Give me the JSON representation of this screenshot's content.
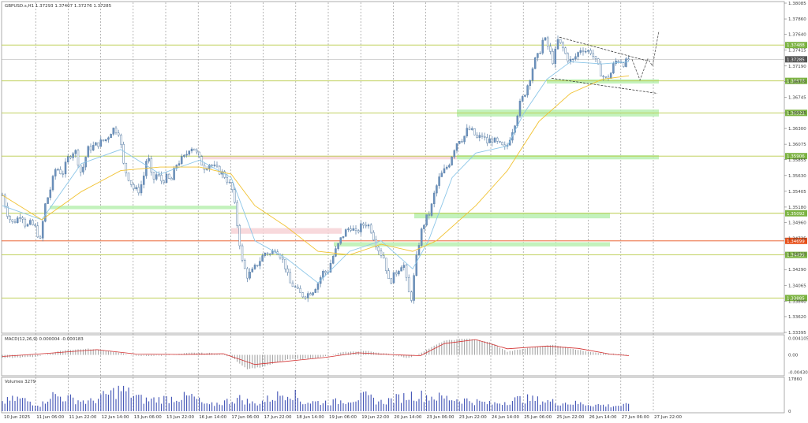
{
  "chart_data": {
    "type": "candlestick",
    "symbol_header": "GBPUSD.s,H1  1.37293 1.37407 1.37276 1.37285",
    "price_axis": {
      "ylim": [
        1.33395,
        1.38085
      ],
      "ticks": [
        "1.38085",
        "1.37860",
        "1.37640",
        "1.37415",
        "1.37190",
        "1.36970",
        "1.36745",
        "1.36525",
        "1.36300",
        "1.36075",
        "1.35855",
        "1.35630",
        "1.35405",
        "1.35180",
        "1.34960",
        "1.34735",
        "1.34510",
        "1.34290",
        "1.34065",
        "1.33840",
        "1.33620",
        "1.33395"
      ],
      "current_price": 1.37285,
      "current_label": "1.37285"
    },
    "levels": [
      {
        "value": 1.37488,
        "label": "1.37488"
      },
      {
        "value": 1.36978,
        "label": "1.36978"
      },
      {
        "value": 1.36522,
        "label": "1.36522"
      },
      {
        "value": 1.35906,
        "label": "1.35906"
      },
      {
        "value": 1.35092,
        "label": "1.35092"
      },
      {
        "value": 1.34699,
        "label": "1.34699",
        "color": "#e8501a"
      },
      {
        "value": 1.34499,
        "label": "1.34499"
      },
      {
        "value": 1.33885,
        "label": "1.33885"
      }
    ],
    "time_labels": [
      "10 Jun 2025",
      "11 Jun 06:00",
      "11 Jun 22:00",
      "12 Jun 14:00",
      "13 Jun 06:00",
      "13 Jun 22:00",
      "16 Jun 14:00",
      "17 Jun 06:00",
      "17 Jun 22:00",
      "18 Jun 14:00",
      "19 Jun 06:00",
      "19 Jun 22:00",
      "20 Jun 14:00",
      "23 Jun 06:00",
      "23 Jun 22:00",
      "24 Jun 14:00",
      "25 Jun 06:00",
      "25 Jun 22:00",
      "26 Jun 14:00",
      "27 Jun 06:00",
      "27 Jun 22:00"
    ],
    "price_keypoints": [
      {
        "x": 0,
        "close": 1.3535
      },
      {
        "x": 6,
        "close": 1.351
      },
      {
        "x": 12,
        "close": 1.3495
      },
      {
        "x": 18,
        "close": 1.35
      },
      {
        "x": 24,
        "close": 1.351
      },
      {
        "x": 30,
        "close": 1.349
      },
      {
        "x": 36,
        "close": 1.3495
      },
      {
        "x": 42,
        "close": 1.3488
      },
      {
        "x": 48,
        "close": 1.347
      },
      {
        "x": 54,
        "close": 1.352
      },
      {
        "x": 60,
        "close": 1.354
      },
      {
        "x": 68,
        "close": 1.3575
      },
      {
        "x": 76,
        "close": 1.3565
      },
      {
        "x": 84,
        "close": 1.359
      },
      {
        "x": 92,
        "close": 1.36
      },
      {
        "x": 100,
        "close": 1.3565
      },
      {
        "x": 108,
        "close": 1.36
      },
      {
        "x": 116,
        "close": 1.3605
      },
      {
        "x": 124,
        "close": 1.361
      },
      {
        "x": 132,
        "close": 1.3615
      },
      {
        "x": 140,
        "close": 1.363
      },
      {
        "x": 148,
        "close": 1.3625
      },
      {
        "x": 154,
        "close": 1.3575
      },
      {
        "x": 160,
        "close": 1.356
      },
      {
        "x": 166,
        "close": 1.3545
      },
      {
        "x": 172,
        "close": 1.354
      },
      {
        "x": 178,
        "close": 1.3555
      },
      {
        "x": 184,
        "close": 1.3595
      },
      {
        "x": 190,
        "close": 1.3555
      },
      {
        "x": 196,
        "close": 1.3565
      },
      {
        "x": 202,
        "close": 1.3555
      },
      {
        "x": 208,
        "close": 1.356
      },
      {
        "x": 214,
        "close": 1.3555
      },
      {
        "x": 220,
        "close": 1.3578
      },
      {
        "x": 226,
        "close": 1.3585
      },
      {
        "x": 232,
        "close": 1.359
      },
      {
        "x": 238,
        "close": 1.3605
      },
      {
        "x": 244,
        "close": 1.36
      },
      {
        "x": 250,
        "close": 1.3585
      },
      {
        "x": 256,
        "close": 1.3575
      },
      {
        "x": 262,
        "close": 1.358
      },
      {
        "x": 268,
        "close": 1.3575
      },
      {
        "x": 274,
        "close": 1.357
      },
      {
        "x": 280,
        "close": 1.3565
      },
      {
        "x": 286,
        "close": 1.3555
      },
      {
        "x": 292,
        "close": 1.354
      },
      {
        "x": 298,
        "close": 1.349
      },
      {
        "x": 304,
        "close": 1.344
      },
      {
        "x": 310,
        "close": 1.342
      },
      {
        "x": 316,
        "close": 1.3425
      },
      {
        "x": 322,
        "close": 1.3435
      },
      {
        "x": 328,
        "close": 1.3445
      },
      {
        "x": 334,
        "close": 1.3455
      },
      {
        "x": 340,
        "close": 1.345
      },
      {
        "x": 346,
        "close": 1.346
      },
      {
        "x": 352,
        "close": 1.345
      },
      {
        "x": 358,
        "close": 1.3435
      },
      {
        "x": 364,
        "close": 1.341
      },
      {
        "x": 370,
        "close": 1.3405
      },
      {
        "x": 376,
        "close": 1.3395
      },
      {
        "x": 382,
        "close": 1.3392
      },
      {
        "x": 388,
        "close": 1.3395
      },
      {
        "x": 394,
        "close": 1.34
      },
      {
        "x": 400,
        "close": 1.341
      },
      {
        "x": 406,
        "close": 1.3425
      },
      {
        "x": 412,
        "close": 1.3425
      },
      {
        "x": 418,
        "close": 1.3445
      },
      {
        "x": 424,
        "close": 1.346
      },
      {
        "x": 430,
        "close": 1.3475
      },
      {
        "x": 436,
        "close": 1.3485
      },
      {
        "x": 442,
        "close": 1.349
      },
      {
        "x": 448,
        "close": 1.348
      },
      {
        "x": 454,
        "close": 1.349
      },
      {
        "x": 460,
        "close": 1.3495
      },
      {
        "x": 466,
        "close": 1.349
      },
      {
        "x": 472,
        "close": 1.347
      },
      {
        "x": 478,
        "close": 1.3455
      },
      {
        "x": 484,
        "close": 1.3445
      },
      {
        "x": 490,
        "close": 1.341
      },
      {
        "x": 496,
        "close": 1.342
      },
      {
        "x": 502,
        "close": 1.343
      },
      {
        "x": 508,
        "close": 1.344
      },
      {
        "x": 514,
        "close": 1.34
      },
      {
        "x": 518,
        "close": 1.3385
      },
      {
        "x": 524,
        "close": 1.344
      },
      {
        "x": 530,
        "close": 1.348
      },
      {
        "x": 536,
        "close": 1.35
      },
      {
        "x": 542,
        "close": 1.351
      },
      {
        "x": 548,
        "close": 1.354
      },
      {
        "x": 554,
        "close": 1.356
      },
      {
        "x": 560,
        "close": 1.357
      },
      {
        "x": 566,
        "close": 1.358
      },
      {
        "x": 572,
        "close": 1.36
      },
      {
        "x": 578,
        "close": 1.3615
      },
      {
        "x": 584,
        "close": 1.3615
      },
      {
        "x": 590,
        "close": 1.363
      },
      {
        "x": 596,
        "close": 1.3625
      },
      {
        "x": 602,
        "close": 1.3615
      },
      {
        "x": 608,
        "close": 1.362
      },
      {
        "x": 614,
        "close": 1.361
      },
      {
        "x": 620,
        "close": 1.3615
      },
      {
        "x": 626,
        "close": 1.361
      },
      {
        "x": 632,
        "close": 1.3605
      },
      {
        "x": 638,
        "close": 1.36
      },
      {
        "x": 644,
        "close": 1.362
      },
      {
        "x": 650,
        "close": 1.364
      },
      {
        "x": 656,
        "close": 1.3665
      },
      {
        "x": 662,
        "close": 1.368
      },
      {
        "x": 668,
        "close": 1.37
      },
      {
        "x": 674,
        "close": 1.3725
      },
      {
        "x": 680,
        "close": 1.3735
      },
      {
        "x": 686,
        "close": 1.376
      },
      {
        "x": 692,
        "close": 1.3745
      },
      {
        "x": 698,
        "close": 1.3725
      },
      {
        "x": 704,
        "close": 1.3755
      },
      {
        "x": 710,
        "close": 1.3745
      },
      {
        "x": 716,
        "close": 1.373
      },
      {
        "x": 722,
        "close": 1.3725
      },
      {
        "x": 728,
        "close": 1.3735
      },
      {
        "x": 734,
        "close": 1.3745
      },
      {
        "x": 740,
        "close": 1.374
      },
      {
        "x": 746,
        "close": 1.374
      },
      {
        "x": 752,
        "close": 1.3725
      },
      {
        "x": 758,
        "close": 1.371
      },
      {
        "x": 764,
        "close": 1.37
      },
      {
        "x": 770,
        "close": 1.3705
      },
      {
        "x": 776,
        "close": 1.3725
      },
      {
        "x": 782,
        "close": 1.3728
      },
      {
        "x": 788,
        "close": 1.3722
      },
      {
        "x": 794,
        "close": 1.37285
      }
    ],
    "ma_fast": [
      [
        0,
        1.352
      ],
      [
        50,
        1.35
      ],
      [
        100,
        1.358
      ],
      [
        150,
        1.36
      ],
      [
        200,
        1.3565
      ],
      [
        250,
        1.3585
      ],
      [
        290,
        1.356
      ],
      [
        320,
        1.347
      ],
      [
        360,
        1.3445
      ],
      [
        400,
        1.341
      ],
      [
        440,
        1.3455
      ],
      [
        480,
        1.347
      ],
      [
        520,
        1.343
      ],
      [
        540,
        1.347
      ],
      [
        570,
        1.356
      ],
      [
        600,
        1.3595
      ],
      [
        640,
        1.3605
      ],
      [
        660,
        1.365
      ],
      [
        690,
        1.37
      ],
      [
        720,
        1.3725
      ],
      [
        760,
        1.3722
      ],
      [
        794,
        1.3725
      ]
    ],
    "ma_slow": [
      [
        0,
        1.3535
      ],
      [
        50,
        1.35
      ],
      [
        100,
        1.354
      ],
      [
        150,
        1.357
      ],
      [
        200,
        1.3575
      ],
      [
        250,
        1.3575
      ],
      [
        290,
        1.3565
      ],
      [
        320,
        1.352
      ],
      [
        360,
        1.349
      ],
      [
        400,
        1.3455
      ],
      [
        440,
        1.345
      ],
      [
        480,
        1.3465
      ],
      [
        520,
        1.3455
      ],
      [
        550,
        1.347
      ],
      [
        600,
        1.352
      ],
      [
        640,
        1.357
      ],
      [
        680,
        1.364
      ],
      [
        720,
        1.368
      ],
      [
        760,
        1.37
      ],
      [
        794,
        1.3705
      ]
    ],
    "channel": {
      "upper": [
        [
          706,
          1.376
        ],
        [
          818,
          1.3726
        ]
      ],
      "lower": [
        [
          696,
          1.37015
        ],
        [
          830,
          1.368
        ]
      ]
    },
    "projection": [
      [
        798,
        1.37285
      ],
      [
        808,
        1.3699
      ],
      [
        818,
        1.3729
      ],
      [
        824,
        1.3719
      ],
      [
        832,
        1.3769
      ]
    ],
    "zones": [
      {
        "x0": 576,
        "x1": 832,
        "y0": 1.3657,
        "y1": 1.3647,
        "color": "green"
      },
      {
        "x0": 576,
        "x1": 832,
        "y0": 1.3592,
        "y1": 1.3586,
        "color": "green"
      },
      {
        "x0": 690,
        "x1": 832,
        "y0": 1.37,
        "y1": 1.3694,
        "color": "green"
      },
      {
        "x0": 60,
        "x1": 298,
        "y0": 1.352,
        "y1": 1.3515,
        "color": "green"
      },
      {
        "x0": 522,
        "x1": 770,
        "y0": 1.351,
        "y1": 1.3502,
        "color": "green"
      },
      {
        "x0": 420,
        "x1": 770,
        "y0": 1.3468,
        "y1": 1.3462,
        "color": "green"
      },
      {
        "x0": 252,
        "x1": 576,
        "y0": 1.3591,
        "y1": 1.3586,
        "color": "pink"
      },
      {
        "x0": 290,
        "x1": 430,
        "y0": 1.3488,
        "y1": 1.348,
        "color": "pink"
      }
    ],
    "macd": {
      "label": "MACD(12,26,9) 0.000004 -0.000183",
      "ticks": [
        "0.004105",
        "0.00",
        "-0.004305"
      ],
      "ylim": [
        -0.0048,
        0.0046
      ],
      "histogram_keypoints": [
        [
          0,
          -0.0008
        ],
        [
          40,
          -0.0005
        ],
        [
          80,
          0.0012
        ],
        [
          110,
          0.0015
        ],
        [
          140,
          0.0008
        ],
        [
          170,
          -0.0003
        ],
        [
          200,
          -0.0002
        ],
        [
          240,
          0.0005
        ],
        [
          270,
          0.0004
        ],
        [
          290,
          -0.0005
        ],
        [
          310,
          -0.0035
        ],
        [
          330,
          -0.003
        ],
        [
          360,
          -0.0012
        ],
        [
          400,
          -0.0008
        ],
        [
          430,
          0.0006
        ],
        [
          460,
          0.001
        ],
        [
          490,
          0.0002
        ],
        [
          515,
          -0.0008
        ],
        [
          530,
          0.0005
        ],
        [
          560,
          0.0035
        ],
        [
          590,
          0.0041
        ],
        [
          620,
          0.003
        ],
        [
          640,
          0.0008
        ],
        [
          670,
          0.0018
        ],
        [
          700,
          0.0025
        ],
        [
          730,
          0.0012
        ],
        [
          760,
          0.0004
        ],
        [
          794,
          0.0
        ]
      ],
      "signal_keypoints": [
        [
          0,
          -0.0004
        ],
        [
          60,
          0.0004
        ],
        [
          120,
          0.0013
        ],
        [
          170,
          0.0002
        ],
        [
          230,
          0.0001
        ],
        [
          280,
          0.0003
        ],
        [
          320,
          -0.0024
        ],
        [
          360,
          -0.0016
        ],
        [
          410,
          -0.0006
        ],
        [
          450,
          0.0005
        ],
        [
          500,
          0.0
        ],
        [
          530,
          -0.0002
        ],
        [
          560,
          0.0028
        ],
        [
          600,
          0.0038
        ],
        [
          640,
          0.0015
        ],
        [
          690,
          0.0022
        ],
        [
          730,
          0.0016
        ],
        [
          770,
          0.0002
        ],
        [
          794,
          -0.0002
        ]
      ]
    },
    "volumes": {
      "label": "Volumes 3279",
      "ticks": [
        "17860",
        "0"
      ],
      "ylim": [
        0,
        17860
      ],
      "keypoints": [
        [
          0,
          5000
        ],
        [
          20,
          7000
        ],
        [
          50,
          3500
        ],
        [
          60,
          9000
        ],
        [
          110,
          5000
        ],
        [
          150,
          12000
        ],
        [
          180,
          6000
        ],
        [
          240,
          8000
        ],
        [
          260,
          3000
        ],
        [
          300,
          7000
        ],
        [
          320,
          4000
        ],
        [
          365,
          11000
        ],
        [
          380,
          5000
        ],
        [
          420,
          5000
        ],
        [
          460,
          8000
        ],
        [
          480,
          5000
        ],
        [
          520,
          9000
        ],
        [
          545,
          8000
        ],
        [
          590,
          6000
        ],
        [
          620,
          4000
        ],
        [
          660,
          7000
        ],
        [
          700,
          5000
        ],
        [
          740,
          4000
        ],
        [
          770,
          3000
        ],
        [
          794,
          3279
        ]
      ]
    }
  }
}
